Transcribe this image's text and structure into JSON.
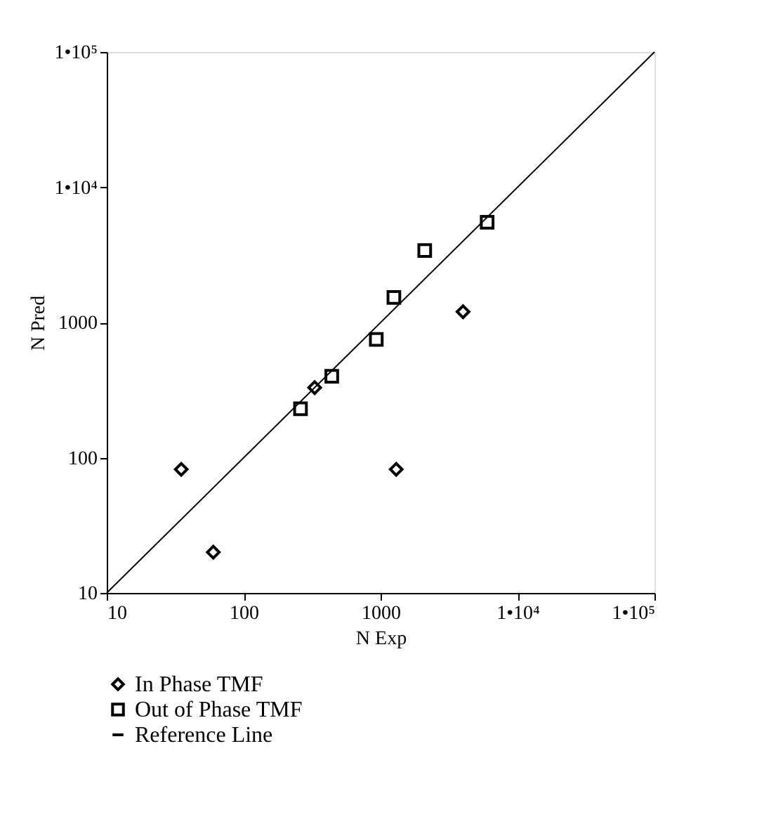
{
  "chart_data": {
    "type": "scatter",
    "xlabel": "N Exp",
    "ylabel": "N Pred",
    "log": "xy",
    "grid": false,
    "legend": "bottom left",
    "xlim": [
      10,
      100000
    ],
    "ylim": [
      10,
      100000
    ],
    "xticks": [
      10,
      100,
      1000,
      {
        "value": 10000,
        "label": "1•10⁴"
      },
      {
        "value": 100000,
        "label": "1•10⁵"
      }
    ],
    "yticks": [
      10,
      100,
      1000,
      {
        "value": 10000,
        "label": "1•10⁴"
      },
      {
        "value": 100000,
        "label": "1•10⁵"
      }
    ],
    "series": [
      {
        "name": "In Phase TMF",
        "marker": "diamond",
        "color": "#000000",
        "x": [
          35,
          60,
          1300,
          330,
          4000
        ],
        "values": [
          82,
          20,
          82,
          330,
          1200
        ]
      },
      {
        "name": "Out of Phase TMF",
        "marker": "square",
        "color": "#000000",
        "x": [
          260,
          440,
          930,
          1250,
          2100,
          6000
        ],
        "values": [
          230,
          400,
          750,
          1530,
          3400,
          5500
        ]
      },
      {
        "name": "Reference Line",
        "type": "line",
        "marker": "none",
        "line_style": "solid",
        "color": "#000000",
        "x": [
          10,
          100000
        ],
        "values": [
          10,
          100000
        ]
      }
    ]
  }
}
